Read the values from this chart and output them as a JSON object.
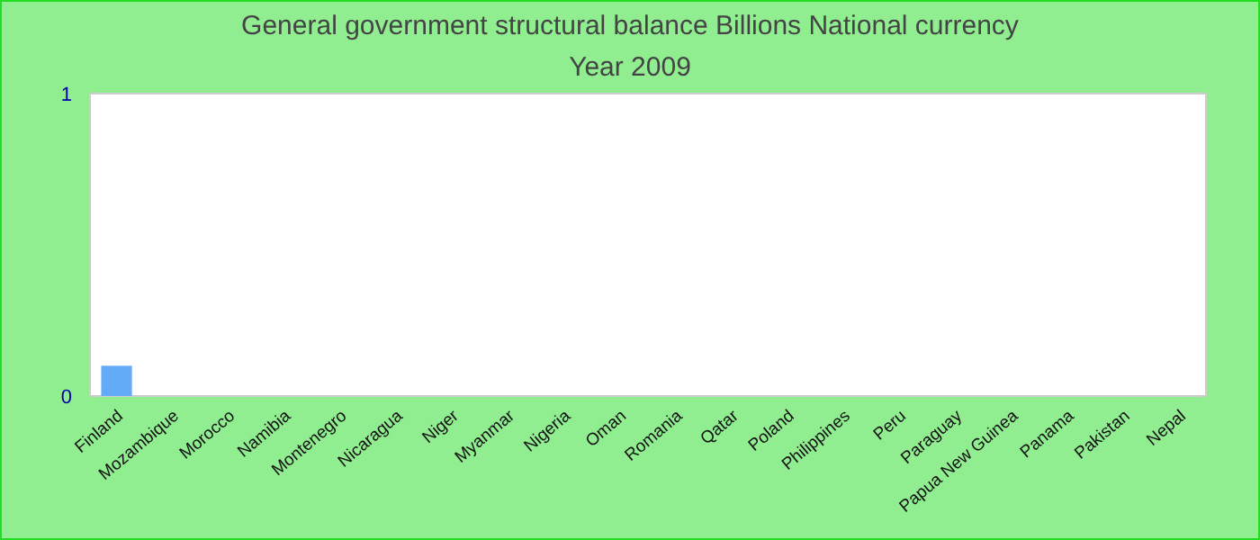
{
  "chart_data": {
    "type": "bar",
    "title": "General government structural balance Billions National currency",
    "subtitle": "Year 2009",
    "categories": [
      "Finland",
      "Mozambique",
      "Morocco",
      "Namibia",
      "Montenegro",
      "Nicaragua",
      "Niger",
      "Myanmar",
      "Nigeria",
      "Oman",
      "Romania",
      "Qatar",
      "Poland",
      "Philippines",
      "Peru",
      "Paraguay",
      "Papua New Guinea",
      "Panama",
      "Pakistan",
      "Nepal"
    ],
    "values": [
      0.1,
      0,
      0,
      0,
      0,
      0,
      0,
      0,
      0,
      0,
      0,
      0,
      0,
      0,
      0,
      0,
      0,
      0,
      0,
      0
    ],
    "color": "#63aaf7",
    "ylim": [
      0,
      1
    ],
    "yticks": [
      0,
      1
    ],
    "grid": false
  }
}
